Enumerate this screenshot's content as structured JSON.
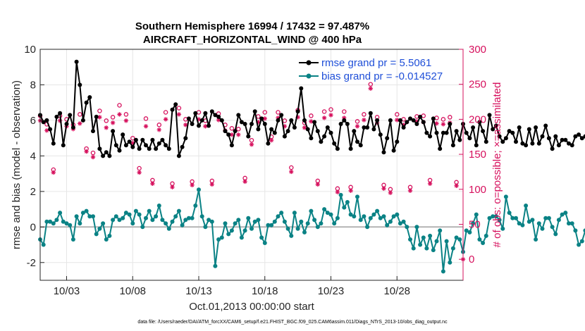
{
  "chart_data": {
    "type": "line",
    "title_line1": "Southern Hemisphere 16994 / 17432 = 97.487%",
    "title_line2": "AIRCRAFT_HORIZONTAL_WIND @ 400 hPa",
    "xlabel": "Oct.01,2013 00:00:00 start",
    "ylabel_left": "rmse and bias (model - observation)",
    "ylabel_right": "# of obs: o=possible; ×=assimilated",
    "footnote": "data file: /Users/raeder/DAI/ATM_forcXX/CAM6_setup/f.e21.FHIST_BGC.f09_025.CAM6assim.011/Diags_NTrS_2013-10/obs_diag_output.nc",
    "x_range_days": [
      1,
      33
    ],
    "x_ticks": [
      {
        "day": 3,
        "label": "10/03"
      },
      {
        "day": 8,
        "label": "10/08"
      },
      {
        "day": 13,
        "label": "10/13"
      },
      {
        "day": 18,
        "label": "10/18"
      },
      {
        "day": 23,
        "label": "10/23"
      },
      {
        "day": 28,
        "label": "10/28"
      }
    ],
    "left_axis": {
      "ylim": [
        -3,
        10
      ],
      "ticks": [
        -2,
        0,
        2,
        4,
        6,
        8,
        10
      ]
    },
    "right_axis": {
      "ylim": [
        -30,
        300
      ],
      "ticks": [
        0,
        50,
        100,
        150,
        200,
        250,
        300
      ]
    },
    "colors": {
      "rmse": "#000000",
      "bias": "#0a8285",
      "obs": "#d6105d",
      "zero_line": "#b3b3b3",
      "legend_text": "#1f4fd8"
    },
    "legend": [
      {
        "series": "rmse",
        "label": "rmse grand pr = 5.5061"
      },
      {
        "series": "bias",
        "label": "bias grand pr = -0.014527"
      }
    ],
    "series": [
      {
        "name": "rmse",
        "axis": "left",
        "start_day": 1.0,
        "step_days": 0.25,
        "values": [
          6.3,
          5.9,
          6.0,
          5.5,
          4.7,
          6.2,
          6.4,
          4.6,
          5.8,
          6.3,
          5.6,
          9.3,
          8.0,
          6.0,
          7.0,
          7.3,
          5.4,
          6.2,
          4.4,
          4.0,
          4.2,
          4.0,
          5.4,
          4.6,
          4.3,
          5.2,
          4.6,
          4.8,
          4.5,
          4.9,
          4.4,
          4.9,
          4.6,
          4.4,
          4.9,
          4.4,
          4.7,
          4.9,
          4.6,
          4.4,
          6.6,
          6.9,
          4.0,
          4.5,
          5.0,
          6.1,
          5.8,
          6.4,
          5.7,
          6.0,
          6.4,
          5.7,
          6.5,
          6.3,
          6.2,
          6.0,
          5.4,
          5.2,
          4.6,
          5.4,
          6.3,
          5.9,
          5.8,
          5.1,
          5.8,
          6.5,
          5.5,
          6.1,
          5.8,
          4.7,
          5.5,
          5.3,
          6.0,
          6.3,
          5.1,
          5.4,
          6.0,
          5.6,
          6.5,
          7.8,
          6.0,
          5.5,
          5.0,
          5.9,
          5.4,
          4.8,
          5.1,
          5.6,
          5.3,
          4.7,
          4.4,
          5.8,
          6.0,
          5.8,
          4.4,
          5.4,
          4.8,
          4.6,
          5.6,
          5.6,
          6.4,
          5.5,
          6.0,
          5.2,
          4.2,
          5.0,
          6.0,
          4.3,
          4.8,
          6.0,
          5.6,
          5.9,
          6.1,
          6.0,
          5.8,
          6.2,
          5.9,
          5.3,
          5.1,
          6.1,
          5.3,
          4.4,
          5.3,
          5.3,
          5.8,
          4.6,
          5.4,
          4.9,
          5.8,
          5.3,
          5.0,
          5.6,
          4.6,
          5.9,
          5.4,
          4.8,
          6.3,
          5.5,
          5.7,
          5.1,
          4.8,
          5.0,
          5.4,
          5.3,
          4.8,
          5.6,
          4.7,
          4.6,
          5.5,
          4.7,
          5.6,
          4.7,
          5.1,
          5.7,
          5.0,
          4.4,
          5.1,
          4.6,
          4.9,
          4.9,
          4.7,
          4.6,
          5.1,
          5.2,
          5.0,
          5.1,
          4.8,
          4.7,
          4.6,
          4.6
        ]
      },
      {
        "name": "bias",
        "axis": "left",
        "start_day": 1.0,
        "step_days": 0.25,
        "values": [
          -0.7,
          -1.0,
          0.3,
          0.3,
          0.2,
          0.4,
          0.8,
          0.3,
          0.2,
          0.1,
          -0.7,
          0.6,
          0.2,
          0.8,
          0.9,
          0.6,
          0.6,
          -0.4,
          -0.1,
          0.2,
          -0.7,
          -0.5,
          0.4,
          0.6,
          0.4,
          0.5,
          0.8,
          0.7,
          0.2,
          0.9,
          0.7,
          0.0,
          0.5,
          0.9,
          0.4,
          0.6,
          1.2,
          0.4,
          0.2,
          -0.1,
          0.3,
          0.6,
          0.9,
          0.1,
          0.4,
          0.5,
          0.5,
          1.2,
          2.1,
          0.6,
          0.0,
          0.4,
          0.3,
          -2.2,
          -0.7,
          -0.6,
          0.2,
          -0.4,
          -0.2,
          0.2,
          0.4,
          -0.6,
          -0.2,
          0.5,
          -0.1,
          0.3,
          0.4,
          -0.6,
          -0.9,
          0.1,
          0.1,
          0.3,
          0.6,
          0.8,
          0.3,
          -0.1,
          -0.5,
          0.8,
          -0.1,
          0.3,
          -0.3,
          0.2,
          0.9,
          0.4,
          0.0,
          0.2,
          1.0,
          0.8,
          0.7,
          0.2,
          0.5,
          1.8,
          1.1,
          1.4,
          0.7,
          0.6,
          1.7,
          0.4,
          0.6,
          0.0,
          0.5,
          0.7,
          0.9,
          0.5,
          0.6,
          0.1,
          0.3,
          0.6,
          0.7,
          0.2,
          0.3,
          0.0,
          -0.7,
          -1.2,
          0.0,
          -1.0,
          -0.6,
          -1.2,
          -0.5,
          -1.3,
          -0.8,
          -0.2,
          -2.5,
          -0.8,
          -2.0,
          -1.2,
          -0.6,
          -0.7,
          -1.4,
          -0.2,
          -0.3,
          0.2,
          0.7,
          -0.7,
          -0.9,
          -0.5,
          0.5,
          0.6,
          0.6,
          0.4,
          -0.1,
          1.7,
          0.8,
          0.5,
          0.5,
          0.2,
          0.1,
          1.2,
          0.3,
          0.4,
          -0.7,
          0.2,
          -0.1,
          0.5,
          0.5,
          0.0,
          -0.4,
          0.4,
          0.7,
          0.8,
          0.2,
          0.2,
          -0.2,
          -1.0,
          -0.8,
          -0.2,
          -0.6,
          0.0,
          -1.8,
          -0.2,
          -0.5,
          -1.0,
          0.8,
          0.7
        ]
      },
      {
        "name": "obs_possible",
        "axis": "right",
        "points": [
          [
            1.0,
            205
          ],
          [
            1.5,
            193
          ],
          [
            2.0,
            128
          ],
          [
            2.5,
            205
          ],
          [
            3.0,
            200
          ],
          [
            3.5,
            192
          ],
          [
            4.0,
            207
          ],
          [
            4.5,
            158
          ],
          [
            5.0,
            152
          ],
          [
            5.5,
            212
          ],
          [
            6.0,
            198
          ],
          [
            6.5,
            203
          ],
          [
            7.0,
            220
          ],
          [
            7.5,
            207
          ],
          [
            8.0,
            173
          ],
          [
            8.5,
            130
          ],
          [
            9.0,
            201
          ],
          [
            9.5,
            113
          ],
          [
            10.0,
            192
          ],
          [
            10.5,
            210
          ],
          [
            11.0,
            108
          ],
          [
            11.5,
            216
          ],
          [
            12.0,
            200
          ],
          [
            12.5,
            111
          ],
          [
            13.0,
            210
          ],
          [
            13.5,
            198
          ],
          [
            14.0,
            112
          ],
          [
            14.5,
            208
          ],
          [
            15.0,
            192
          ],
          [
            15.5,
            187
          ],
          [
            16.0,
            186
          ],
          [
            16.5,
            116
          ],
          [
            17.0,
            170
          ],
          [
            17.5,
            204
          ],
          [
            18.0,
            210
          ],
          [
            18.5,
            175
          ],
          [
            19.0,
            210
          ],
          [
            19.5,
            198
          ],
          [
            20.0,
            131
          ],
          [
            20.5,
            213
          ],
          [
            21.0,
            195
          ],
          [
            21.5,
            205
          ],
          [
            22.0,
            112
          ],
          [
            22.5,
            211
          ],
          [
            23.0,
            214
          ],
          [
            23.5,
            101
          ],
          [
            24.0,
            211
          ],
          [
            24.5,
            103
          ],
          [
            25.0,
            197
          ],
          [
            25.5,
            207
          ],
          [
            26.0,
            250
          ],
          [
            26.5,
            203
          ],
          [
            27.0,
            106
          ],
          [
            27.5,
            100
          ],
          [
            28.0,
            207
          ],
          [
            28.5,
            200
          ],
          [
            29.0,
            103
          ],
          [
            29.5,
            204
          ],
          [
            30.0,
            205
          ],
          [
            30.5,
            113
          ],
          [
            31.0,
            202
          ],
          [
            31.5,
            200
          ],
          [
            32.0,
            203
          ],
          [
            32.5,
            110
          ]
        ]
      },
      {
        "name": "obs_assimilated",
        "axis": "right",
        "points": [
          [
            1.0,
            198
          ],
          [
            1.5,
            184
          ],
          [
            2.0,
            124
          ],
          [
            2.5,
            198
          ],
          [
            3.0,
            190
          ],
          [
            3.5,
            186
          ],
          [
            4.0,
            194
          ],
          [
            4.5,
            154
          ],
          [
            5.0,
            146
          ],
          [
            5.5,
            203
          ],
          [
            6.0,
            188
          ],
          [
            6.5,
            195
          ],
          [
            7.0,
            207
          ],
          [
            7.5,
            198
          ],
          [
            8.0,
            166
          ],
          [
            8.5,
            124
          ],
          [
            9.0,
            190
          ],
          [
            9.5,
            108
          ],
          [
            10.0,
            185
          ],
          [
            10.5,
            200
          ],
          [
            11.0,
            103
          ],
          [
            11.5,
            207
          ],
          [
            12.0,
            192
          ],
          [
            12.5,
            106
          ],
          [
            13.0,
            200
          ],
          [
            13.5,
            190
          ],
          [
            14.0,
            107
          ],
          [
            14.5,
            199
          ],
          [
            15.0,
            184
          ],
          [
            15.5,
            178
          ],
          [
            16.0,
            178
          ],
          [
            16.5,
            111
          ],
          [
            17.0,
            164
          ],
          [
            17.5,
            196
          ],
          [
            18.0,
            201
          ],
          [
            18.5,
            170
          ],
          [
            19.0,
            202
          ],
          [
            19.5,
            190
          ],
          [
            20.0,
            125
          ],
          [
            20.5,
            203
          ],
          [
            21.0,
            188
          ],
          [
            21.5,
            197
          ],
          [
            22.0,
            107
          ],
          [
            22.5,
            202
          ],
          [
            23.0,
            206
          ],
          [
            23.5,
            96
          ],
          [
            24.0,
            202
          ],
          [
            24.5,
            98
          ],
          [
            25.0,
            190
          ],
          [
            25.5,
            199
          ],
          [
            26.0,
            244
          ],
          [
            26.5,
            195
          ],
          [
            27.0,
            101
          ],
          [
            27.5,
            95
          ],
          [
            28.0,
            199
          ],
          [
            28.5,
            192
          ],
          [
            29.0,
            98
          ],
          [
            29.5,
            197
          ],
          [
            30.0,
            196
          ],
          [
            30.5,
            108
          ],
          [
            31.0,
            194
          ],
          [
            31.5,
            193
          ],
          [
            32.0,
            195
          ],
          [
            32.5,
            105
          ],
          [
            33.0,
            0
          ]
        ]
      }
    ]
  }
}
